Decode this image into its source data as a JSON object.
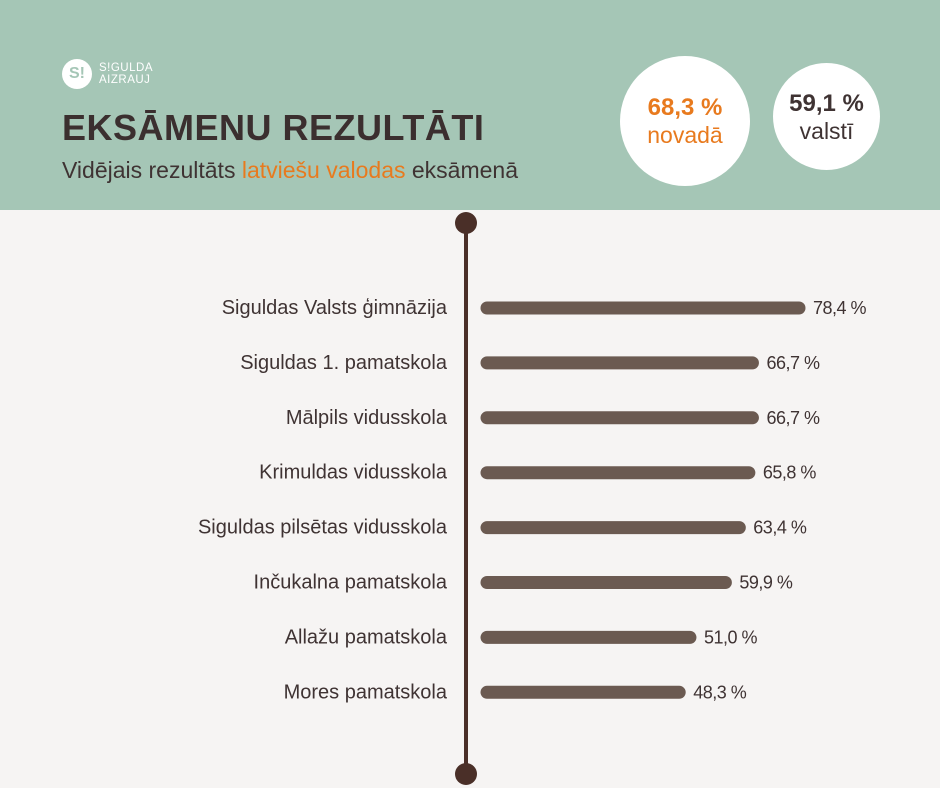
{
  "logo": {
    "mark": "S!",
    "line1": "S!GULDA",
    "line2": "AIZRAUJ"
  },
  "header": {
    "title": "EKSĀMENU REZULTĀTI",
    "subtitle_before": "Vidējais rezultāts ",
    "subtitle_highlight": "latviešu valodas",
    "subtitle_after": " eksāmenā"
  },
  "stats": {
    "region": {
      "value": "68,3 %",
      "label": "novadā"
    },
    "country": {
      "value": "59,1 %",
      "label": "valstī"
    }
  },
  "colors": {
    "header_bg": "#a5c6b6",
    "accent": "#e87a1e",
    "bar": "#6b5a51",
    "axis": "#4a2f28",
    "text": "#3f3333",
    "page_bg": "#f6f4f3"
  },
  "chart_data": {
    "type": "bar",
    "orientation": "horizontal",
    "categories": [
      "Siguldas Valsts ģimnāzija",
      "Siguldas 1. pamatskola",
      "Mālpils vidusskola",
      "Krimuldas vidusskola",
      "Siguldas pilsētas vidusskola",
      "Inčukalna pamatskola",
      "Allažu pamatskola",
      "Mores pamatskola"
    ],
    "values": [
      78.4,
      66.7,
      66.7,
      65.8,
      63.4,
      59.9,
      51.0,
      48.3
    ],
    "value_labels": [
      "78,4 %",
      "66,7 %",
      "66,7 %",
      "65,8 %",
      "63,4 %",
      "59,9 %",
      "51,0 %",
      "48,3 %"
    ],
    "unit": "%"
  }
}
